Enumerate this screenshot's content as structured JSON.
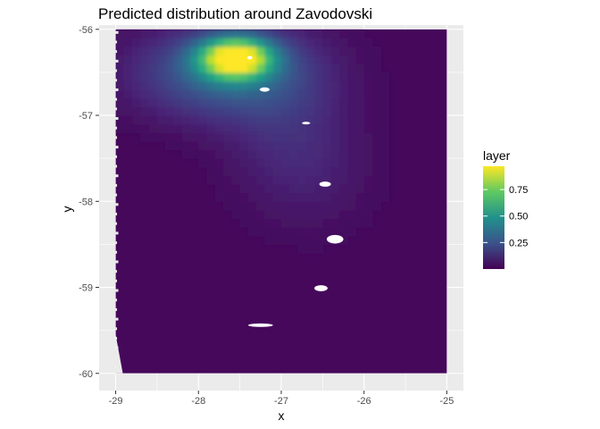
{
  "chart_data": {
    "type": "heatmap",
    "title": "Predicted distribution around Zavodovski",
    "xlabel": "x",
    "ylabel": "y",
    "xlim": [
      -29.2,
      -24.8
    ],
    "ylim": [
      -60.2,
      -55.95
    ],
    "x_ticks": [
      -29,
      -28,
      -27,
      -26,
      -25
    ],
    "y_ticks": [
      -60,
      -59,
      -58,
      -57,
      -56
    ],
    "x_tick_labels": [
      "-29",
      "-28",
      "-27",
      "-26",
      "-25"
    ],
    "y_tick_labels": [
      "-60",
      "-59",
      "-58",
      "-57",
      "-56"
    ],
    "grid": true,
    "legend": {
      "title": "layer",
      "placement": "right",
      "range": [
        0,
        0.97
      ],
      "ticks": [
        0.25,
        0.5,
        0.75
      ],
      "tick_labels": [
        "0.25",
        "0.50",
        "0.75"
      ],
      "colormap": "viridis"
    },
    "raster_extent": {
      "x": [
        -29,
        -25
      ],
      "y": [
        -60,
        -56
      ]
    },
    "background_value": 0.02,
    "hotspots": [
      {
        "x": -27.55,
        "y": -56.33,
        "value": 0.95,
        "sx": 0.3,
        "sy": 0.16
      },
      {
        "x": -27.7,
        "y": -56.5,
        "value": 0.3,
        "sx": 0.7,
        "sy": 0.35
      },
      {
        "x": -27.0,
        "y": -57.0,
        "value": 0.08,
        "sx": 0.5,
        "sy": 0.6
      },
      {
        "x": -26.6,
        "y": -57.6,
        "value": 0.05,
        "sx": 0.5,
        "sy": 0.5
      }
    ],
    "islands": [
      {
        "x": -27.38,
        "y": -56.33,
        "rx": 0.03,
        "ry": 0.02
      },
      {
        "x": -27.2,
        "y": -56.7,
        "rx": 0.06,
        "ry": 0.025
      },
      {
        "x": -26.7,
        "y": -57.09,
        "rx": 0.05,
        "ry": 0.015
      },
      {
        "x": -26.47,
        "y": -57.8,
        "rx": 0.07,
        "ry": 0.03
      },
      {
        "x": -26.35,
        "y": -58.44,
        "rx": 0.1,
        "ry": 0.05
      },
      {
        "x": -26.52,
        "y": -59.01,
        "rx": 0.08,
        "ry": 0.035
      },
      {
        "x": -27.25,
        "y": -59.44,
        "rx": 0.15,
        "ry": 0.02
      }
    ]
  }
}
